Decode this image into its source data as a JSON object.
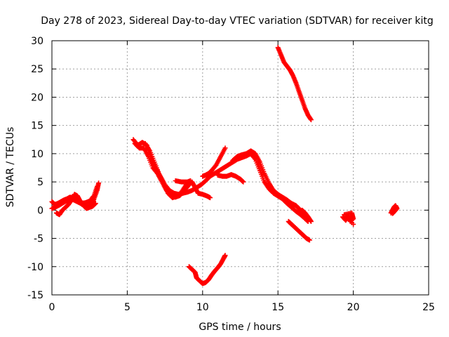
{
  "chart_data": {
    "type": "scatter",
    "title": "Day 278 of 2023, Sidereal Day-to-day VTEC variation (SDTVAR) for receiver kitg",
    "xlabel": "GPS time / hours",
    "ylabel": "SDTVAR / TECUs",
    "xlim": [
      0,
      25
    ],
    "ylim": [
      -15,
      30
    ],
    "xticks": [
      0,
      5,
      10,
      15,
      20,
      25
    ],
    "yticks": [
      -15,
      -10,
      -5,
      0,
      5,
      10,
      15,
      20,
      25,
      30
    ],
    "xtick_labels": [
      "0",
      "5",
      "10",
      "15",
      "20",
      "25"
    ],
    "ytick_labels": [
      "-15",
      "-10",
      "-5",
      "0",
      "5",
      "10",
      "15",
      "20",
      "25",
      "30"
    ],
    "grid": true,
    "marker": "plus",
    "color": "#ff0000",
    "series": [
      {
        "points": [
          [
            0.0,
            1.5
          ],
          [
            0.2,
            1.0
          ],
          [
            0.4,
            1.2
          ],
          [
            0.6,
            1.5
          ],
          [
            0.8,
            1.8
          ],
          [
            1.0,
            2.0
          ],
          [
            1.2,
            2.3
          ],
          [
            1.4,
            2.2
          ],
          [
            1.6,
            2.0
          ],
          [
            1.8,
            1.5
          ],
          [
            2.0,
            1.0
          ],
          [
            2.2,
            0.8
          ],
          [
            2.4,
            0.6
          ],
          [
            2.6,
            1.0
          ],
          [
            2.8,
            2.0
          ],
          [
            3.0,
            3.5
          ],
          [
            3.1,
            4.8
          ]
        ]
      },
      {
        "points": [
          [
            0.3,
            -0.5
          ],
          [
            0.5,
            -0.8
          ],
          [
            0.7,
            0.0
          ],
          [
            0.9,
            0.5
          ],
          [
            1.1,
            1.0
          ],
          [
            1.3,
            1.8
          ],
          [
            1.5,
            2.8
          ],
          [
            1.7,
            2.5
          ],
          [
            1.9,
            1.5
          ],
          [
            2.1,
            0.8
          ],
          [
            2.3,
            0.3
          ],
          [
            2.5,
            0.5
          ],
          [
            2.7,
            0.7
          ],
          [
            2.9,
            1.2
          ]
        ]
      },
      {
        "points": [
          [
            0.0,
            0.3
          ],
          [
            0.2,
            0.5
          ],
          [
            0.5,
            0.9
          ],
          [
            0.8,
            1.4
          ],
          [
            1.0,
            1.7
          ],
          [
            1.3,
            2.0
          ],
          [
            1.6,
            1.6
          ],
          [
            1.9,
            1.2
          ],
          [
            2.2,
            1.3
          ],
          [
            2.5,
            1.6
          ],
          [
            2.8,
            2.6
          ],
          [
            3.0,
            4.2
          ]
        ]
      },
      {
        "points": [
          [
            5.4,
            12.5
          ],
          [
            5.7,
            11.5
          ],
          [
            6.0,
            12.0
          ],
          [
            6.3,
            11.5
          ],
          [
            6.6,
            9.0
          ],
          [
            6.9,
            7.5
          ],
          [
            7.2,
            6.0
          ],
          [
            7.5,
            4.5
          ],
          [
            7.8,
            3.5
          ],
          [
            8.1,
            3.0
          ],
          [
            8.4,
            2.8
          ],
          [
            8.7,
            3.0
          ],
          [
            9.0,
            3.2
          ],
          [
            9.3,
            3.5
          ],
          [
            9.6,
            4.0
          ],
          [
            9.9,
            4.5
          ],
          [
            10.2,
            5.2
          ],
          [
            10.5,
            6.0
          ],
          [
            10.8,
            6.5
          ],
          [
            11.1,
            7.0
          ],
          [
            11.4,
            7.5
          ],
          [
            11.7,
            8.0
          ],
          [
            12.0,
            8.5
          ],
          [
            12.3,
            9.0
          ],
          [
            12.6,
            9.3
          ],
          [
            12.9,
            9.6
          ],
          [
            13.2,
            10.0
          ],
          [
            13.5,
            9.0
          ],
          [
            13.8,
            7.0
          ],
          [
            14.1,
            5.0
          ],
          [
            14.4,
            3.8
          ],
          [
            14.7,
            3.0
          ],
          [
            15.0,
            2.5
          ],
          [
            15.3,
            2.0
          ],
          [
            15.6,
            1.2
          ],
          [
            15.9,
            0.5
          ],
          [
            16.2,
            -0.2
          ],
          [
            16.5,
            -0.8
          ],
          [
            16.8,
            -1.5
          ],
          [
            17.0,
            -2.0
          ]
        ]
      },
      {
        "points": [
          [
            5.5,
            11.8
          ],
          [
            5.8,
            11.0
          ],
          [
            6.1,
            11.0
          ],
          [
            6.4,
            9.5
          ],
          [
            6.7,
            7.5
          ],
          [
            7.0,
            6.5
          ],
          [
            7.3,
            5.0
          ],
          [
            7.6,
            3.5
          ],
          [
            7.9,
            2.5
          ],
          [
            8.2,
            2.3
          ],
          [
            8.5,
            2.6
          ],
          [
            8.8,
            3.5
          ],
          [
            9.1,
            4.5
          ],
          [
            9.3,
            5.0
          ],
          [
            9.5,
            4.0
          ],
          [
            9.7,
            3.0
          ],
          [
            10.0,
            2.8
          ],
          [
            10.3,
            2.5
          ],
          [
            10.5,
            2.2
          ]
        ]
      },
      {
        "points": [
          [
            6.2,
            11.8
          ],
          [
            6.5,
            10.5
          ],
          [
            6.8,
            8.5
          ],
          [
            7.1,
            6.5
          ],
          [
            7.4,
            4.8
          ],
          [
            7.7,
            3.0
          ],
          [
            8.0,
            2.2
          ],
          [
            8.3,
            2.5
          ],
          [
            8.6,
            3.2
          ],
          [
            8.9,
            4.5
          ],
          [
            9.2,
            5.2
          ],
          [
            9.0,
            5.0
          ],
          [
            8.6,
            5.0
          ],
          [
            8.2,
            5.2
          ]
        ]
      },
      {
        "points": [
          [
            10.0,
            6.0
          ],
          [
            10.2,
            6.2
          ],
          [
            10.4,
            6.5
          ],
          [
            10.6,
            7.0
          ],
          [
            10.9,
            8.0
          ],
          [
            11.2,
            9.5
          ],
          [
            11.5,
            11.0
          ]
        ]
      },
      {
        "points": [
          [
            11.0,
            6.2
          ],
          [
            11.3,
            6.0
          ],
          [
            11.6,
            6.0
          ],
          [
            11.9,
            6.3
          ],
          [
            12.2,
            6.0
          ],
          [
            12.5,
            5.5
          ],
          [
            12.7,
            5.0
          ]
        ]
      },
      {
        "points": [
          [
            12.0,
            8.8
          ],
          [
            12.3,
            9.5
          ],
          [
            12.6,
            9.8
          ],
          [
            12.9,
            10.0
          ],
          [
            13.2,
            10.5
          ],
          [
            13.5,
            10.0
          ],
          [
            13.8,
            8.5
          ],
          [
            14.1,
            6.5
          ],
          [
            14.4,
            4.8
          ],
          [
            14.7,
            3.5
          ],
          [
            15.0,
            2.8
          ],
          [
            15.3,
            2.3
          ],
          [
            15.6,
            1.8
          ],
          [
            15.9,
            1.2
          ],
          [
            16.2,
            0.8
          ],
          [
            16.5,
            0.0
          ],
          [
            16.8,
            -0.8
          ],
          [
            17.0,
            -1.5
          ]
        ]
      },
      {
        "points": [
          [
            15.0,
            28.8
          ],
          [
            15.2,
            27.5
          ],
          [
            15.4,
            26.2
          ],
          [
            15.6,
            25.5
          ],
          [
            15.8,
            24.8
          ],
          [
            16.0,
            23.8
          ],
          [
            16.2,
            22.5
          ],
          [
            16.4,
            21.0
          ],
          [
            16.6,
            19.5
          ],
          [
            16.8,
            18.0
          ],
          [
            17.0,
            16.8
          ],
          [
            17.2,
            16.0
          ]
        ]
      },
      {
        "points": [
          [
            15.7,
            -2.0
          ],
          [
            15.9,
            -2.5
          ],
          [
            16.1,
            -3.0
          ],
          [
            16.3,
            -3.5
          ],
          [
            16.5,
            -4.0
          ],
          [
            16.7,
            -4.5
          ],
          [
            16.9,
            -5.0
          ],
          [
            17.1,
            -5.3
          ]
        ]
      },
      {
        "points": [
          [
            16.6,
            0.0
          ],
          [
            16.8,
            -0.5
          ],
          [
            17.0,
            -1.2
          ],
          [
            17.2,
            -2.0
          ]
        ]
      },
      {
        "points": [
          [
            9.1,
            -10.0
          ],
          [
            9.3,
            -10.5
          ],
          [
            9.5,
            -11.0
          ],
          [
            9.6,
            -12.0
          ],
          [
            9.8,
            -12.5
          ],
          [
            10.0,
            -13.0
          ],
          [
            10.2,
            -12.8
          ],
          [
            10.4,
            -12.3
          ],
          [
            10.6,
            -11.5
          ],
          [
            10.8,
            -10.8
          ],
          [
            11.0,
            -10.2
          ],
          [
            11.2,
            -9.5
          ],
          [
            11.4,
            -8.5
          ],
          [
            11.5,
            -8.0
          ]
        ]
      },
      {
        "points": [
          [
            19.3,
            -1.2
          ],
          [
            19.5,
            -1.8
          ],
          [
            19.7,
            -1.0
          ],
          [
            19.8,
            -2.0
          ],
          [
            20.0,
            -1.5
          ],
          [
            19.9,
            -0.5
          ],
          [
            19.4,
            -0.8
          ],
          [
            20.0,
            -2.5
          ]
        ]
      },
      {
        "points": [
          [
            22.5,
            -0.5
          ],
          [
            22.6,
            0.0
          ],
          [
            22.7,
            0.5
          ],
          [
            22.8,
            0.8
          ],
          [
            22.9,
            0.3
          ],
          [
            22.7,
            -0.3
          ],
          [
            22.6,
            -0.6
          ],
          [
            22.8,
            0.0
          ]
        ]
      }
    ]
  }
}
